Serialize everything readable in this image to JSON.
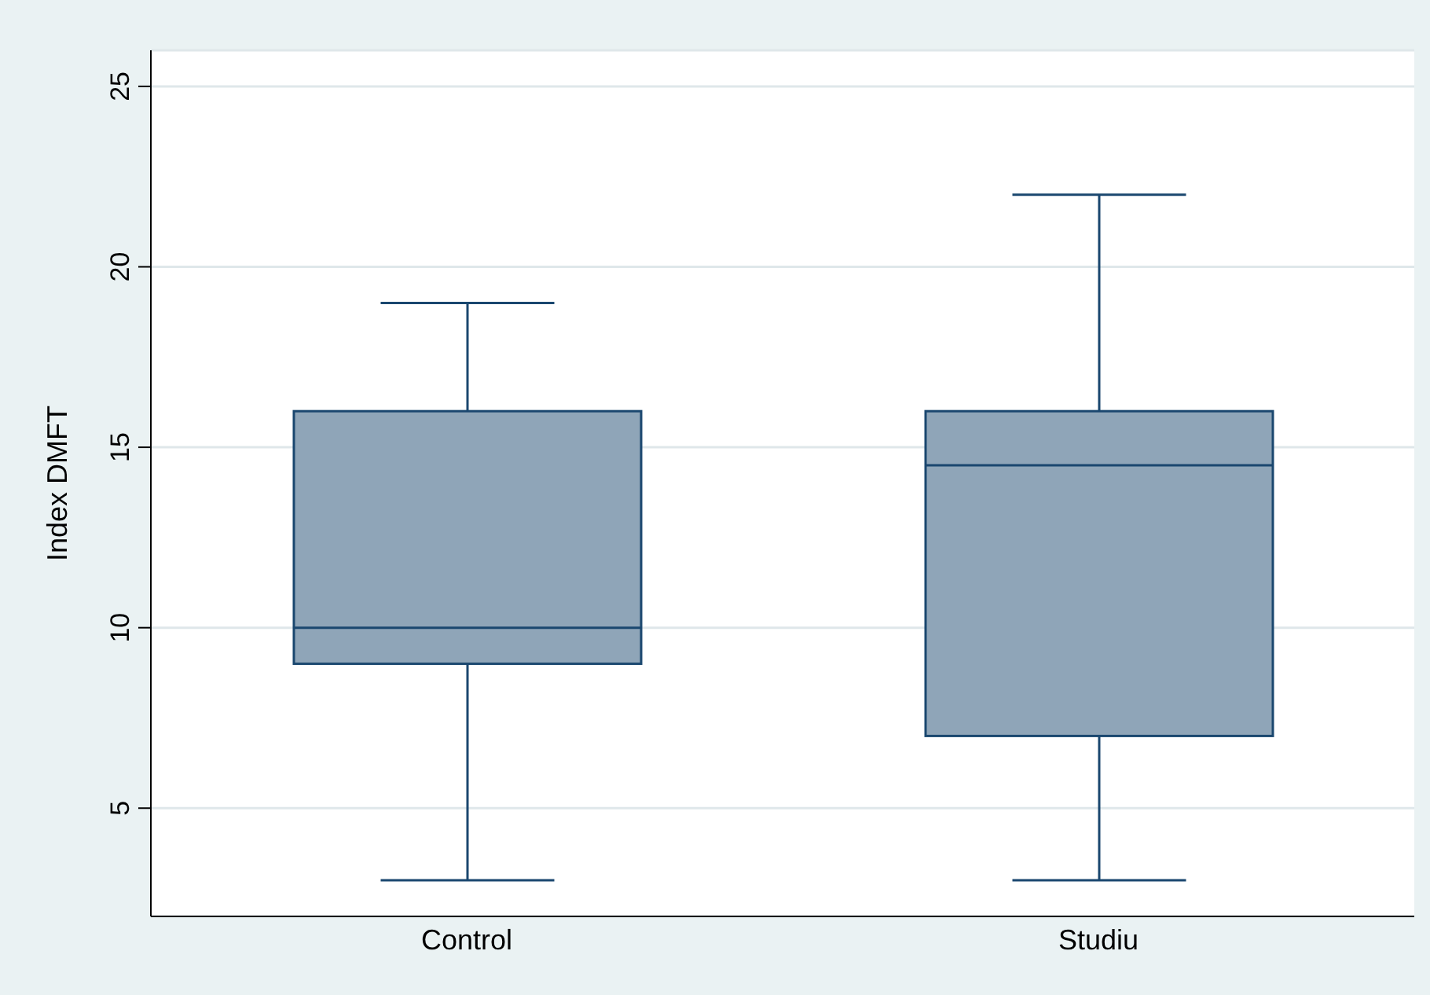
{
  "chart_data": {
    "type": "box",
    "categories": [
      "Control",
      "Studiu"
    ],
    "ylabel": "Index DMFT",
    "color": "#8fa5b8",
    "boxes": [
      {
        "low": 3,
        "q1": 9,
        "median": 10,
        "q3": 16,
        "high": 19
      },
      {
        "low": 3,
        "q1": 7,
        "median": 14.5,
        "q3": 16,
        "high": 22
      }
    ],
    "ylim": [
      2,
      26
    ],
    "yticks": [
      5,
      10,
      15,
      20,
      25
    ],
    "grid": "y"
  }
}
